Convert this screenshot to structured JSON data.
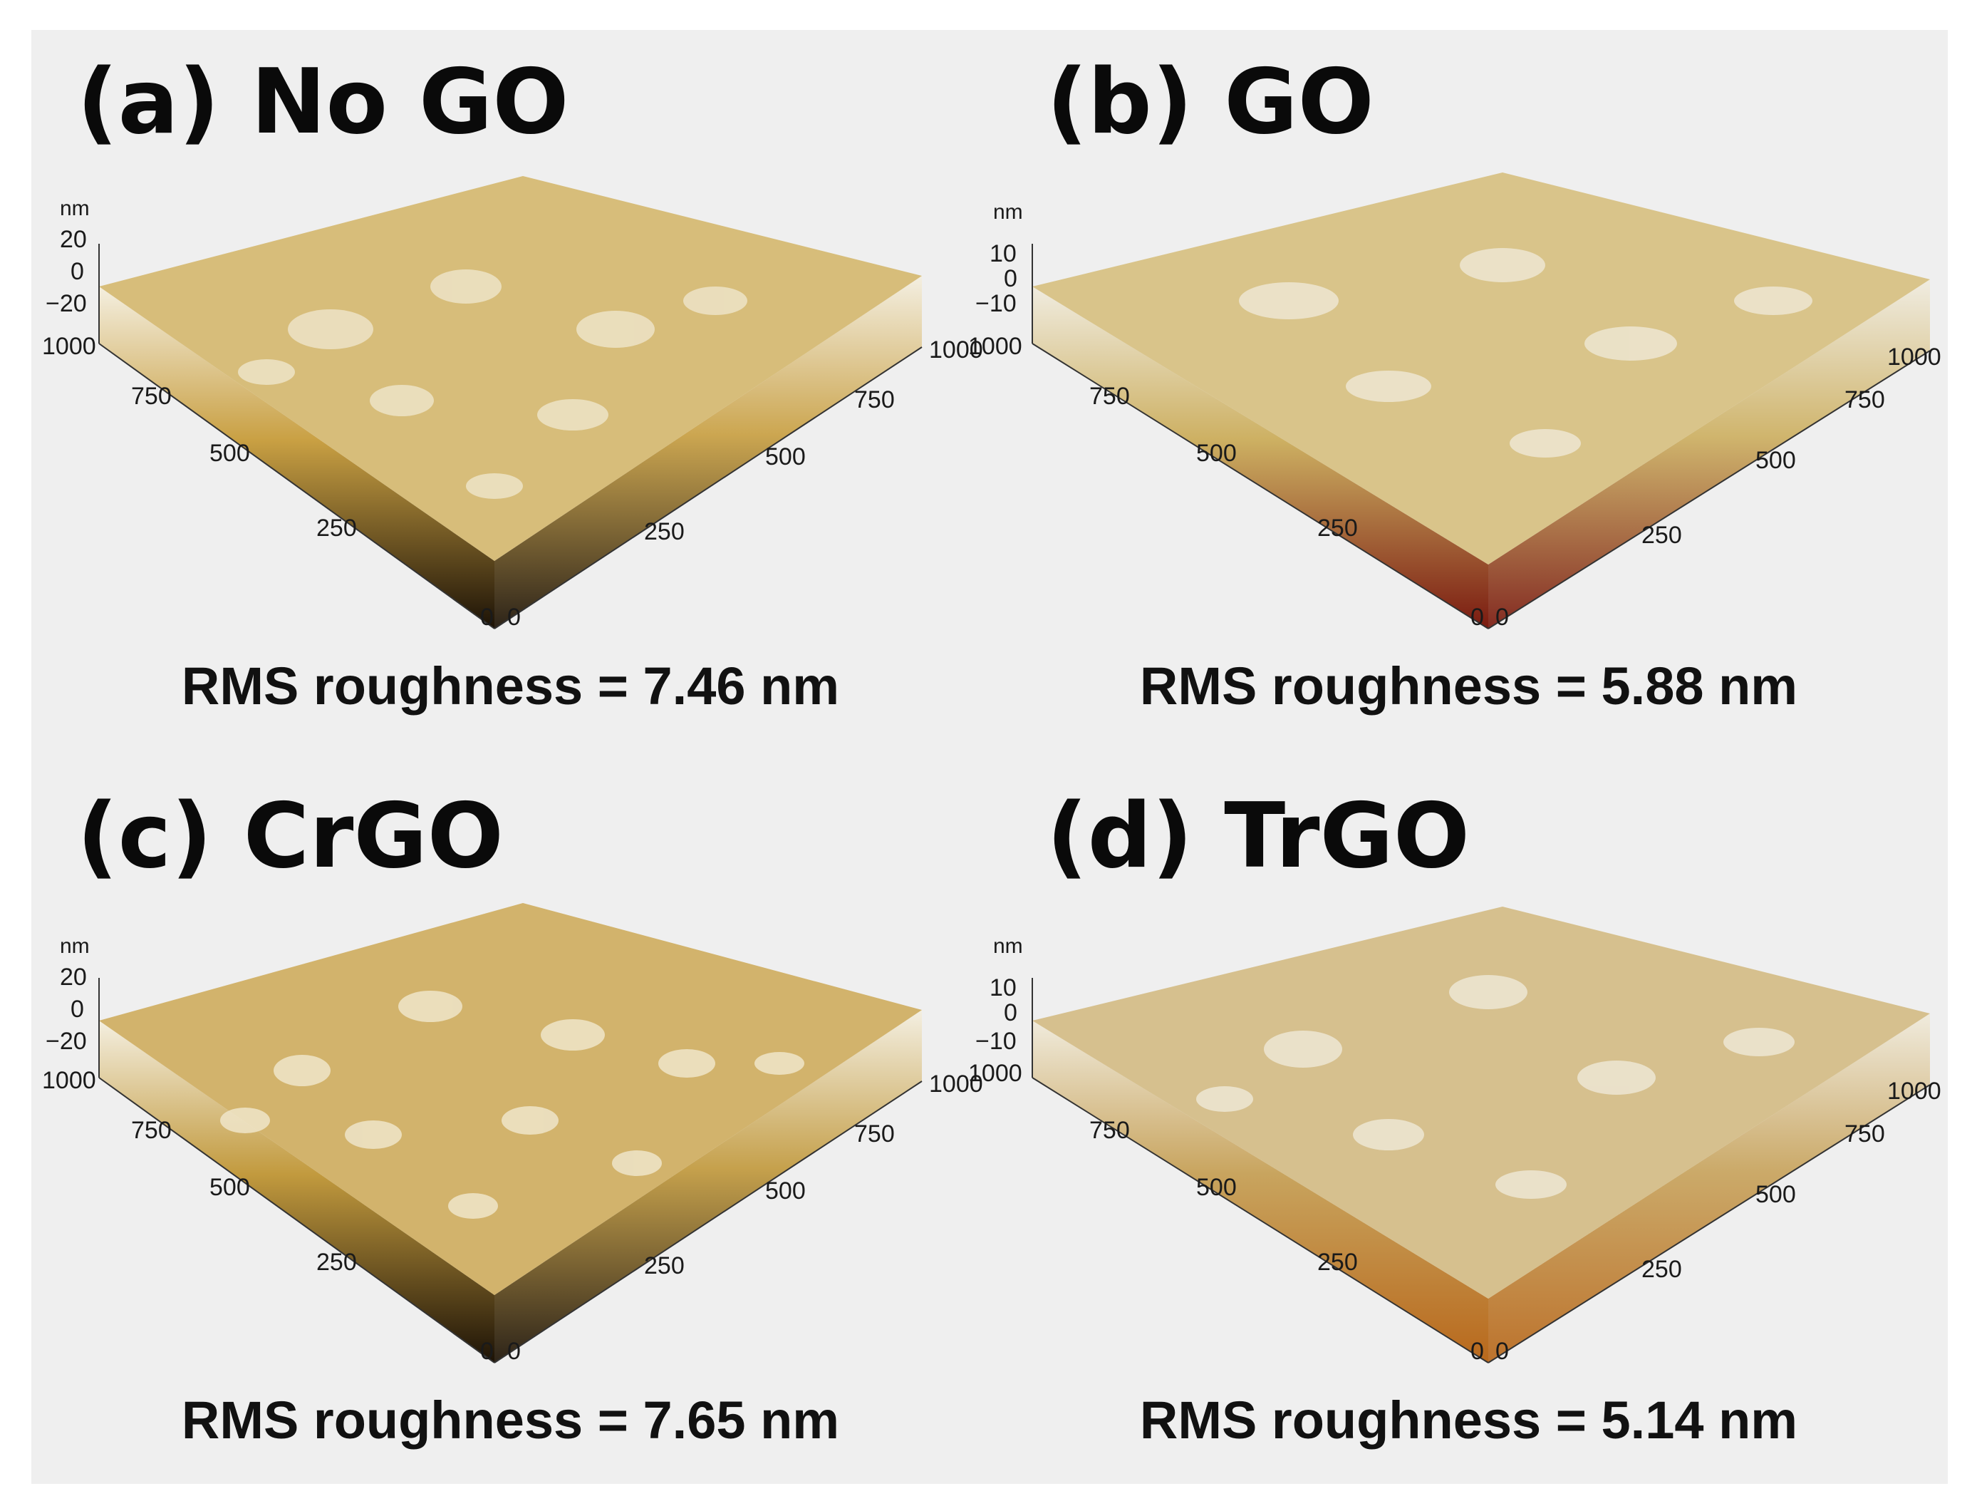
{
  "panels": [
    {
      "title": "(a) No GO",
      "rms_label": "RMS roughness = 7.46 nm",
      "rms_value": 7.46,
      "z_unit": "nm",
      "z_ticks": [
        "20",
        "0",
        "−20"
      ],
      "xy_ticks": [
        "0",
        "250",
        "500",
        "750",
        "1000"
      ],
      "surface_colors": {
        "top": "#f4efe0",
        "mid": "#c9a043",
        "base": "#1c1206"
      }
    },
    {
      "title": "(b) GO",
      "rms_label": "RMS roughness = 5.88 nm",
      "rms_value": 5.88,
      "z_unit": "nm",
      "z_ticks": [
        "10",
        "0",
        "−10"
      ],
      "xy_ticks": [
        "0",
        "250",
        "500",
        "750",
        "1000"
      ],
      "surface_colors": {
        "top": "#f0ece0",
        "mid": "#cdb062",
        "base": "#7a1a10"
      }
    },
    {
      "title": "(c) CrGO",
      "rms_label": "RMS roughness = 7.65 nm",
      "rms_value": 7.65,
      "z_unit": "nm",
      "z_ticks": [
        "20",
        "0",
        "−20"
      ],
      "xy_ticks": [
        "0",
        "250",
        "500",
        "750",
        "1000"
      ],
      "surface_colors": {
        "top": "#f4efe0",
        "mid": "#c29a3e",
        "base": "#1c1206"
      }
    },
    {
      "title": "(d) TrGO",
      "rms_label": "RMS roughness = 5.14 nm",
      "rms_value": 5.14,
      "z_unit": "nm",
      "z_ticks": [
        "10",
        "0",
        "−10"
      ],
      "xy_ticks": [
        "0",
        "250",
        "500",
        "750",
        "1000"
      ],
      "surface_colors": {
        "top": "#f0ebdc",
        "mid": "#c8a45e",
        "base": "#b8681c"
      }
    }
  ]
}
